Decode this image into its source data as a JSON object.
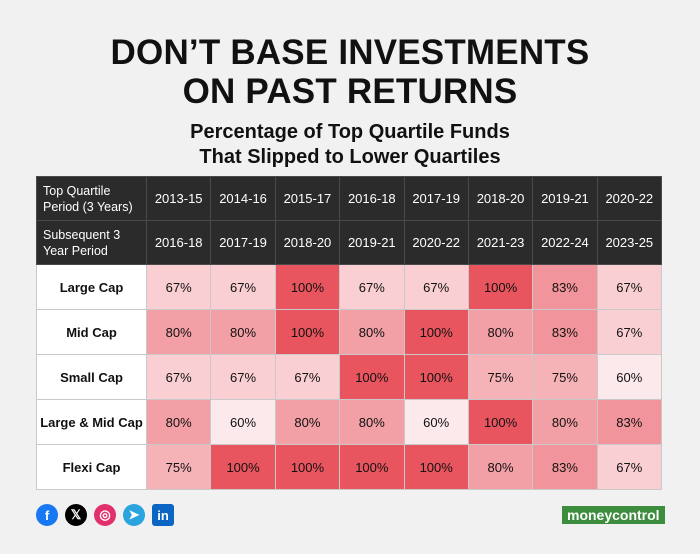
{
  "title_line1": "DON’T BASE INVESTMENTS",
  "title_line2": "ON PAST RETURNS",
  "subtitle_line1": "Percentage of Top Quartile Funds",
  "subtitle_line2": "That Slipped to Lower Quartiles",
  "colors": {
    "heat_low": "#fce9ec",
    "heat_high": "#e9555f",
    "header_bg": "#2b2b2b",
    "logo_green": "#3d8d3f"
  },
  "chart_data": {
    "type": "heatmap",
    "title": "Percentage of Top Quartile Funds That Slipped to Lower Quartiles",
    "header_row1_label": "Top Quartile Period (3 Years)",
    "header_row2_label": "Subsequent 3 Year Period",
    "top_quartile_periods": [
      "2013-15",
      "2014-16",
      "2015-17",
      "2016-18",
      "2017-19",
      "2018-20",
      "2019-21",
      "2020-22"
    ],
    "subsequent_periods": [
      "2016-18",
      "2017-19",
      "2018-20",
      "2019-21",
      "2020-22",
      "2021-23",
      "2022-24",
      "2023-25"
    ],
    "rows": [
      "Large Cap",
      "Mid Cap",
      "Small Cap",
      "Large & Mid Cap",
      "Flexi Cap"
    ],
    "values": [
      [
        67,
        67,
        100,
        67,
        67,
        100,
        83,
        67
      ],
      [
        80,
        80,
        100,
        80,
        100,
        80,
        83,
        67
      ],
      [
        67,
        67,
        67,
        100,
        100,
        75,
        75,
        60
      ],
      [
        80,
        60,
        80,
        80,
        60,
        100,
        80,
        83
      ],
      [
        75,
        100,
        100,
        100,
        100,
        80,
        83,
        67
      ]
    ],
    "unit": "%"
  },
  "social_icons": [
    "facebook-icon",
    "x-icon",
    "instagram-icon",
    "telegram-icon",
    "linkedin-icon"
  ],
  "logo_text": "moneycontrol"
}
